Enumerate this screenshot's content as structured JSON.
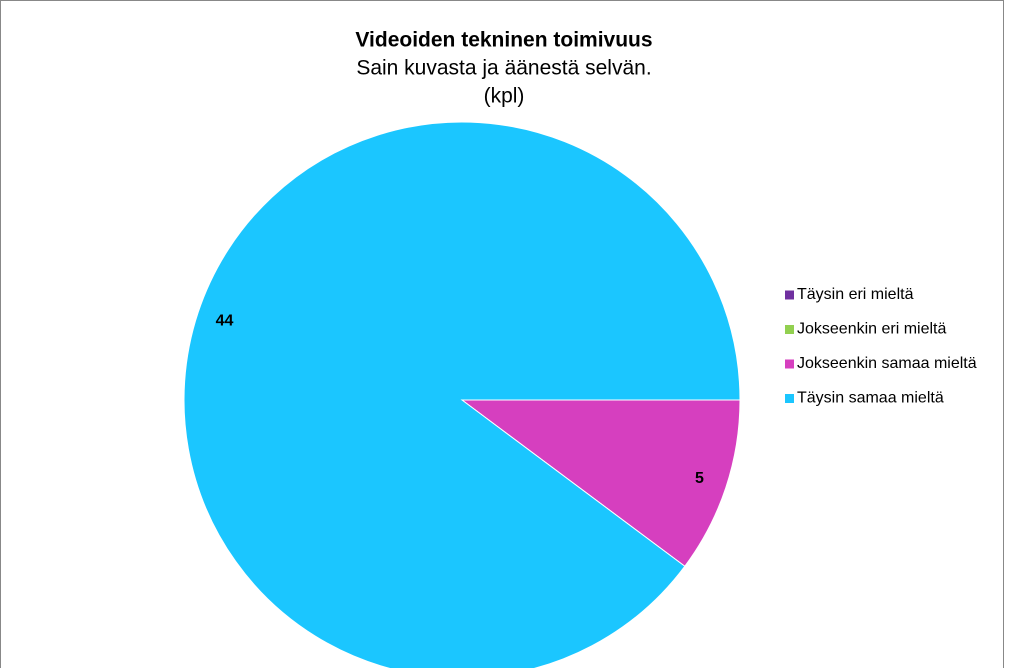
{
  "chart_data": {
    "type": "pie",
    "title": "Videoiden tekninen toimivuus",
    "subtitle": [
      "Sain kuvasta ja äänestä selvän.",
      "(kpl)"
    ],
    "categories": [
      "Täysin eri mieltä",
      "Jokseenkin eri mieltä",
      "Jokseenkin samaa mieltä",
      "Täysin samaa mieltä"
    ],
    "values": [
      0,
      0,
      5,
      44
    ],
    "colors": [
      "#7030a0",
      "#92d050",
      "#d63fbf",
      "#1bc6ff"
    ],
    "legend": "right"
  }
}
